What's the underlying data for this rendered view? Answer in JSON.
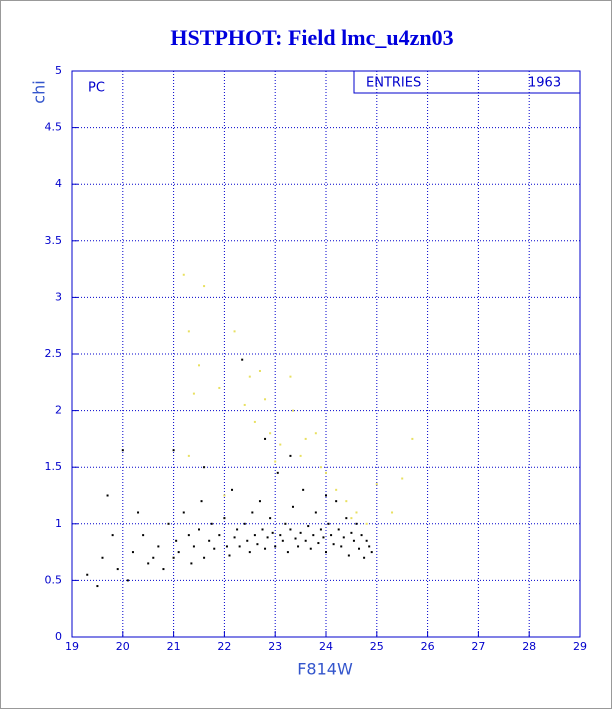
{
  "chart_data": {
    "type": "scatter",
    "title": "HSTPHOT: Field lmc_u4zn03",
    "x_label": "F814W",
    "y_label": "chi",
    "panel_label": "PC",
    "stats_label": "ENTRIES",
    "stats_value": "1963",
    "xlim": [
      19,
      29
    ],
    "ylim": [
      0,
      5
    ],
    "xticks": [
      19,
      20,
      21,
      22,
      23,
      24,
      25,
      26,
      27,
      28,
      29
    ],
    "yticks": [
      0,
      0.5,
      1,
      1.5,
      2,
      2.5,
      3,
      3.5,
      4,
      4.5,
      5
    ],
    "grid": true,
    "series": [
      {
        "color": "#000000",
        "x": [
          19.3,
          19.5,
          19.6,
          19.7,
          19.8,
          19.9,
          20.0,
          20.1,
          20.2,
          20.3,
          20.4,
          20.5,
          20.6,
          20.7,
          20.8,
          20.9,
          21.0,
          21.05,
          21.1,
          21.2,
          21.3,
          21.35,
          21.4,
          21.5,
          21.55,
          21.6,
          21.7,
          21.75,
          21.8,
          21.9,
          22.0,
          22.05,
          22.1,
          22.15,
          22.2,
          22.25,
          22.3,
          22.35,
          22.4,
          22.45,
          22.5,
          22.55,
          22.6,
          22.65,
          22.7,
          22.75,
          22.8,
          22.85,
          22.9,
          22.95,
          23.0,
          23.05,
          23.1,
          23.15,
          23.2,
          23.25,
          23.3,
          23.35,
          23.4,
          23.45,
          23.5,
          23.55,
          23.6,
          23.65,
          23.7,
          23.75,
          23.8,
          23.85,
          23.9,
          23.95,
          24.0,
          24.05,
          24.1,
          24.15,
          24.2,
          24.25,
          24.3,
          24.35,
          24.4,
          24.45,
          24.5,
          24.55,
          24.6,
          24.65,
          24.7,
          24.75,
          24.8,
          24.85,
          24.9,
          21.0,
          22.8,
          21.6,
          23.3,
          24.0
        ],
        "values": [
          0.55,
          0.45,
          0.7,
          1.25,
          0.9,
          0.6,
          1.65,
          0.5,
          0.75,
          1.1,
          0.9,
          0.65,
          0.7,
          0.8,
          0.6,
          1.0,
          0.7,
          0.85,
          0.75,
          1.1,
          0.9,
          0.65,
          0.8,
          0.95,
          1.2,
          0.7,
          0.85,
          1.0,
          0.78,
          0.9,
          1.05,
          0.8,
          0.72,
          1.3,
          0.88,
          0.95,
          0.8,
          2.45,
          1.0,
          0.85,
          0.75,
          1.1,
          0.9,
          0.82,
          1.2,
          0.95,
          0.78,
          0.88,
          1.05,
          0.92,
          0.8,
          1.45,
          0.9,
          0.85,
          1.0,
          0.75,
          0.95,
          1.15,
          0.87,
          0.8,
          0.92,
          1.3,
          0.85,
          0.98,
          0.78,
          0.9,
          1.1,
          0.83,
          0.95,
          0.88,
          0.75,
          1.0,
          0.9,
          0.82,
          1.2,
          0.95,
          0.8,
          0.88,
          1.05,
          0.72,
          0.92,
          0.85,
          1.0,
          0.78,
          0.9,
          0.7,
          0.85,
          0.8,
          0.75,
          1.65,
          1.75,
          1.5,
          1.6,
          1.25
        ]
      },
      {
        "color": "#e8e060",
        "x": [
          21.2,
          21.3,
          21.6,
          21.5,
          21.4,
          21.9,
          22.2,
          22.4,
          22.5,
          22.6,
          22.7,
          22.8,
          22.9,
          23.0,
          23.1,
          23.3,
          23.35,
          23.5,
          23.6,
          23.8,
          24.0,
          24.2,
          24.4,
          24.6,
          24.8,
          25.0,
          25.3,
          25.5,
          25.7,
          21.3,
          22.0,
          23.9,
          24.5
        ],
        "values": [
          3.2,
          2.7,
          3.1,
          2.4,
          2.15,
          2.2,
          2.7,
          2.05,
          2.3,
          1.9,
          2.35,
          2.1,
          1.8,
          1.55,
          1.7,
          2.3,
          2.0,
          1.6,
          1.75,
          1.8,
          1.45,
          1.3,
          1.2,
          1.1,
          1.0,
          1.35,
          1.1,
          1.4,
          1.75,
          1.6,
          1.25,
          1.5,
          1.05
        ]
      }
    ]
  }
}
